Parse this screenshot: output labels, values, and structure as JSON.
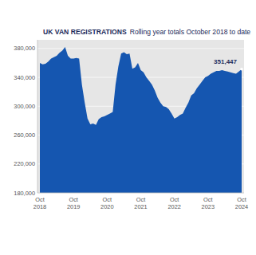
{
  "chart_data": {
    "type": "area",
    "title": "UK VAN REGISTRATIONS",
    "subtitle": "Rolling year totals October 2018 to date",
    "color": "#1556b0",
    "grid": true,
    "categories": [
      "Oct 2018",
      null,
      null,
      null,
      null,
      null,
      null,
      null,
      null,
      null,
      null,
      null,
      "Oct 2019",
      null,
      null,
      null,
      null,
      null,
      null,
      null,
      null,
      null,
      null,
      null,
      "Oct 2020",
      null,
      null,
      null,
      null,
      null,
      null,
      null,
      null,
      null,
      null,
      null,
      "Oct 2021",
      null,
      null,
      null,
      null,
      null,
      null,
      null,
      null,
      null,
      null,
      null,
      "Oct 2022",
      null,
      null,
      null,
      null,
      null,
      null,
      null,
      null,
      null,
      null,
      null,
      "Oct 2023",
      null,
      null,
      null,
      null,
      null,
      null,
      null,
      null,
      null,
      null,
      null,
      "Oct 2024"
    ],
    "values": [
      360000,
      358000,
      359000,
      362000,
      366000,
      368000,
      370000,
      374000,
      377000,
      382000,
      370000,
      366000,
      366000,
      367000,
      366000,
      330000,
      305000,
      283000,
      275000,
      276000,
      274000,
      282000,
      285000,
      286000,
      288000,
      290000,
      292000,
      330000,
      355000,
      373000,
      375000,
      372000,
      373000,
      352000,
      354000,
      360000,
      350000,
      347000,
      340000,
      335000,
      330000,
      322000,
      312000,
      305000,
      300000,
      299000,
      296000,
      290000,
      283000,
      285000,
      288000,
      290000,
      298000,
      305000,
      315000,
      318000,
      325000,
      330000,
      335000,
      340000,
      342000,
      345000,
      347000,
      349000,
      349000,
      350000,
      349000,
      348000,
      347000,
      346000,
      345000,
      348000,
      351447
    ],
    "value_labels": [
      null,
      null,
      null,
      null,
      null,
      null,
      null,
      null,
      null,
      null,
      null,
      null,
      null,
      null,
      null,
      null,
      null,
      null,
      null,
      null,
      null,
      null,
      null,
      null,
      null,
      null,
      null,
      null,
      null,
      null,
      null,
      null,
      null,
      null,
      null,
      null,
      null,
      null,
      null,
      null,
      null,
      null,
      null,
      null,
      null,
      null,
      null,
      null,
      null,
      null,
      null,
      null,
      null,
      null,
      null,
      null,
      null,
      null,
      null,
      null,
      null,
      null,
      null,
      null,
      null,
      null,
      null,
      null,
      null,
      null,
      null,
      null,
      "351,447"
    ],
    "ylim": [
      180000,
      392000
    ],
    "yticks": [
      {
        "value": 180000,
        "label": "180,000"
      },
      {
        "value": 220000,
        "label": "220,000"
      },
      {
        "value": 260000,
        "label": "260,000"
      },
      {
        "value": 300000,
        "label": "300,000"
      },
      {
        "value": 340000,
        "label": "340,000"
      },
      {
        "value": 380000,
        "label": "380,000"
      }
    ]
  }
}
